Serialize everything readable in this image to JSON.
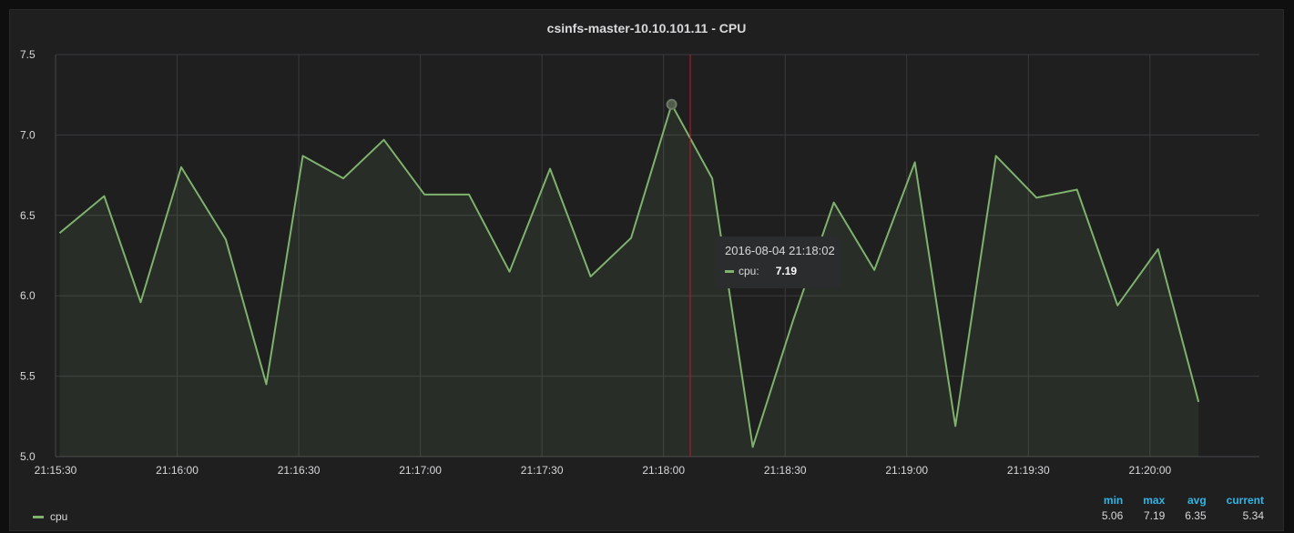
{
  "panel": {
    "title": "csinfs-master-10.10.101.11 - CPU"
  },
  "tooltip": {
    "time": "2016-08-04 21:18:02",
    "series": "cpu:",
    "value": "7.19"
  },
  "legend": {
    "series_name": "cpu",
    "headers": [
      "min",
      "max",
      "avg",
      "current"
    ],
    "values": [
      "5.06",
      "7.19",
      "6.35",
      "5.34"
    ]
  },
  "colors": {
    "line": "#7eb26d",
    "cursor": "#c4162a",
    "legend_header": "#33b5e5"
  },
  "chart_data": {
    "type": "area",
    "title": "csinfs-master-10.10.101.11 - CPU",
    "xlabel": "",
    "ylabel": "",
    "ylim": [
      5.0,
      7.5
    ],
    "yticks": [
      "5.0",
      "5.5",
      "6.0",
      "6.5",
      "7.0",
      "7.5"
    ],
    "xticks": [
      "21:15:30",
      "21:16:00",
      "21:16:30",
      "21:17:00",
      "21:17:30",
      "21:18:00",
      "21:18:30",
      "21:19:00",
      "21:19:30",
      "21:20:00"
    ],
    "grid": true,
    "series": [
      {
        "name": "cpu",
        "x": [
          "21:15:31",
          "21:15:42",
          "21:15:51",
          "21:16:01",
          "21:16:12",
          "21:16:22",
          "21:16:31",
          "21:16:41",
          "21:16:51",
          "21:17:01",
          "21:17:12",
          "21:17:22",
          "21:17:32",
          "21:17:42",
          "21:17:52",
          "21:18:02",
          "21:18:12",
          "21:18:22",
          "21:18:32",
          "21:18:42",
          "21:18:52",
          "21:19:02",
          "21:19:12",
          "21:19:22",
          "21:19:32",
          "21:19:42",
          "21:19:52",
          "21:20:02",
          "21:20:12"
        ],
        "values": [
          6.39,
          6.62,
          5.96,
          6.8,
          6.35,
          5.45,
          6.87,
          6.73,
          6.97,
          6.63,
          6.63,
          6.15,
          6.79,
          6.12,
          6.36,
          7.19,
          6.73,
          5.06,
          5.85,
          6.58,
          6.16,
          6.83,
          5.19,
          6.87,
          6.61,
          6.66,
          5.94,
          6.29,
          5.34
        ]
      }
    ]
  }
}
